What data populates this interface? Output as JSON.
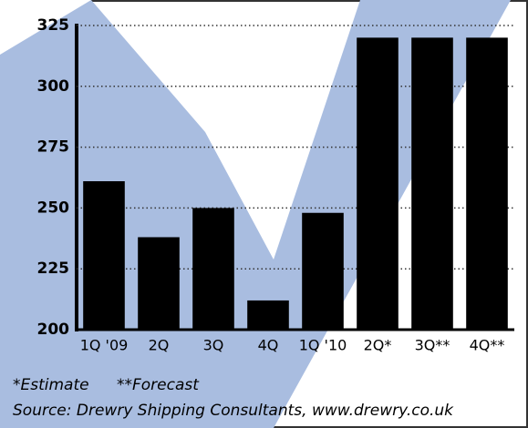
{
  "chart_data": {
    "type": "bar",
    "categories": [
      "1Q '09",
      "2Q",
      "3Q",
      "4Q",
      "1Q '10",
      "2Q*",
      "3Q**",
      "4Q**"
    ],
    "values": [
      261,
      238,
      250,
      212,
      248,
      320,
      320,
      320
    ],
    "color": "#000000",
    "ylim": [
      200,
      325
    ],
    "yticks": [
      200,
      225,
      250,
      275,
      300,
      325
    ],
    "grid": true,
    "notes": [
      "*Estimate",
      "**Forecast"
    ],
    "source": "Source: Drewry Shipping Consultants, www.drewry.co.uk"
  }
}
